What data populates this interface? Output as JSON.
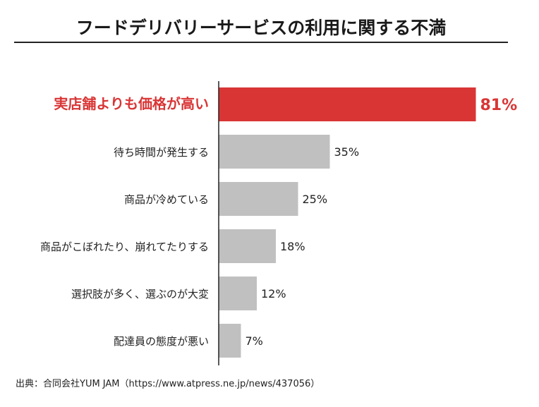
{
  "chart_data": {
    "type": "bar",
    "orientation": "horizontal",
    "title": "フードデリバリーサービスの利用に関する不満",
    "categories": [
      "実店舗よりも価格が高い",
      "待ち時間が発生する",
      "商品が冷めている",
      "商品がこぼれたり、崩れてたりする",
      "選択肢が多く、選ぶのが大変",
      "配達員の態度が悪い"
    ],
    "values": [
      81,
      35,
      25,
      18,
      12,
      7
    ],
    "value_labels": [
      "81%",
      "35%",
      "25%",
      "18%",
      "12%",
      "7%"
    ],
    "highlight_index": 0,
    "xlim": [
      0,
      100
    ],
    "unit": "%",
    "colors": {
      "highlight": "#d93535",
      "default": "#c0c0c0"
    },
    "source": "出典：合同会社YUM JAM（https://www.atpress.ne.jp/news/437056）"
  }
}
